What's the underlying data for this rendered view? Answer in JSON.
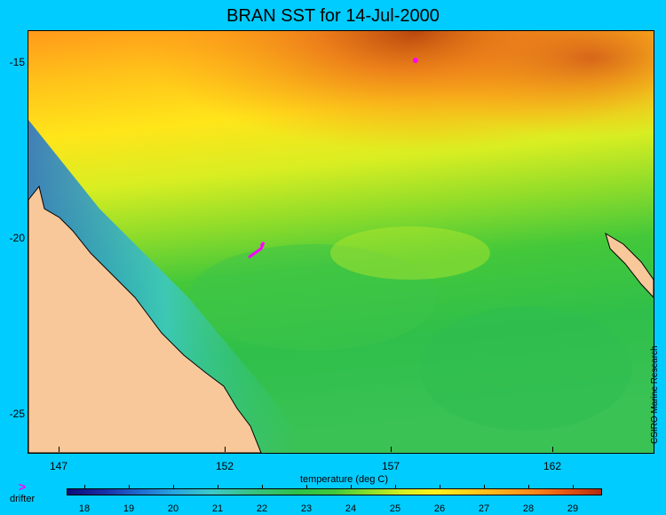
{
  "title": "BRAN SST for 14-Jul-2000",
  "yticks": [
    "-15",
    "-20",
    "-25"
  ],
  "xticks": [
    "147",
    "152",
    "157",
    "162"
  ],
  "xlabel": "temperature (deg C)",
  "credit": "CSIRO Marine Research",
  "legend": {
    "symbol": ">",
    "label": "drifter",
    "color": "#ff00ff"
  },
  "colorbar": {
    "ticks": [
      "18",
      "19",
      "20",
      "21",
      "22",
      "23",
      "24",
      "25",
      "26",
      "27",
      "28",
      "29"
    ]
  },
  "colors": {
    "background": "#00ccff",
    "land": "#f8c89a",
    "drifter": "#ff00ff"
  }
}
